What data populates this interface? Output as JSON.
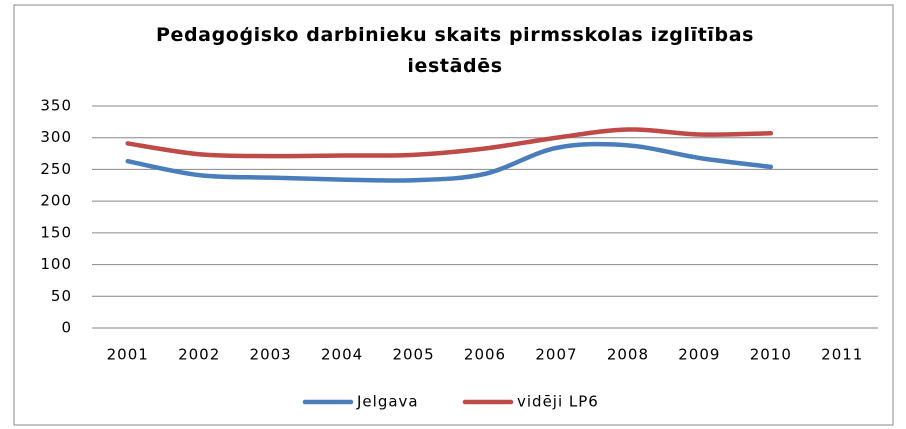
{
  "chart_data": {
    "type": "line",
    "title": "Pedagoģisko darbinieku skaits pirmsskolas izglītības iestādēs",
    "categories": [
      "2001",
      "2002",
      "2003",
      "2004",
      "2005",
      "2006",
      "2007",
      "2008",
      "2009",
      "2010",
      "2011"
    ],
    "series": [
      {
        "name": "Jelgava",
        "color": "#4a7ebb",
        "values": [
          263,
          241,
          237,
          234,
          233,
          243,
          284,
          288,
          268,
          254,
          null
        ]
      },
      {
        "name": "vidēji LP6",
        "color": "#be4b48",
        "values": [
          291,
          274,
          271,
          272,
          273,
          283,
          300,
          313,
          305,
          307,
          null
        ]
      }
    ],
    "ylim": [
      0,
      350
    ],
    "yticks": [
      0,
      50,
      100,
      150,
      200,
      250,
      300,
      350
    ],
    "grid": true,
    "smooth": true,
    "legend": "bottom"
  }
}
